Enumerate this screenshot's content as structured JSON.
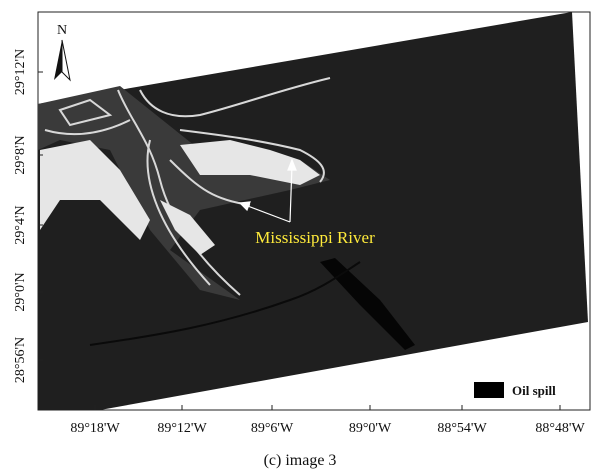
{
  "north_arrow": "N",
  "latitude_labels": [
    "29°12'N",
    "29°8'N",
    "29°4'N",
    "29°0'N",
    "28°56'N"
  ],
  "longitude_labels": [
    "89°18'W",
    "89°12'W",
    "89°6'W",
    "89°0'W",
    "88°54'W",
    "88°48'W"
  ],
  "annotation": "Mississippi River",
  "legend": {
    "label": "Oil spill"
  },
  "caption": "(c) image 3"
}
